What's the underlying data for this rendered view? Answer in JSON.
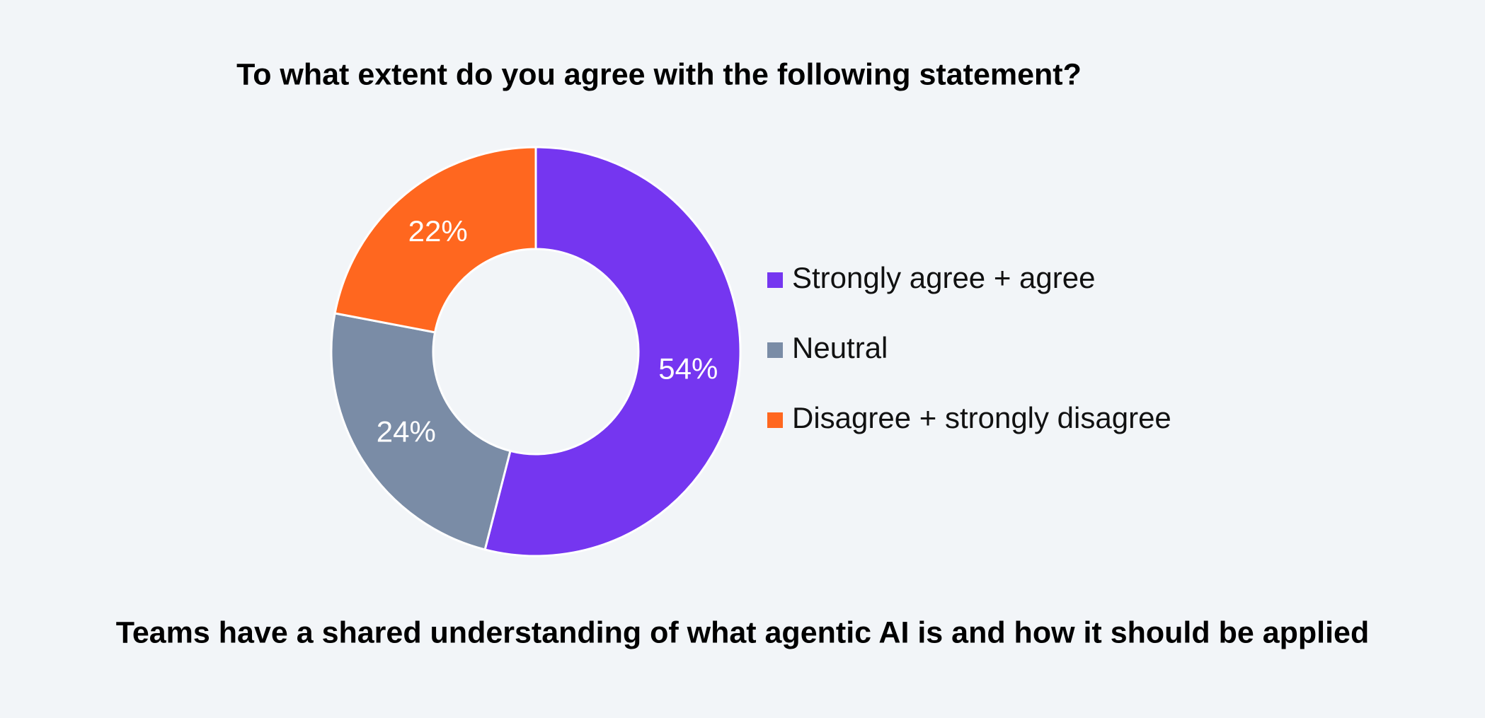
{
  "chart_data": {
    "type": "pie",
    "title": "To what extent do you agree with the following statement?",
    "subtitle": "Teams have a shared understanding of what agentic AI is and how it should be applied",
    "categories": [
      "Strongly agree + agree",
      "Neutral",
      "Disagree + strongly disagree"
    ],
    "values": [
      54,
      24,
      22
    ],
    "value_labels": [
      "54%",
      "24%",
      "22%"
    ],
    "colors": [
      "#7536f0",
      "#7a8ca6",
      "#ff671f"
    ]
  }
}
